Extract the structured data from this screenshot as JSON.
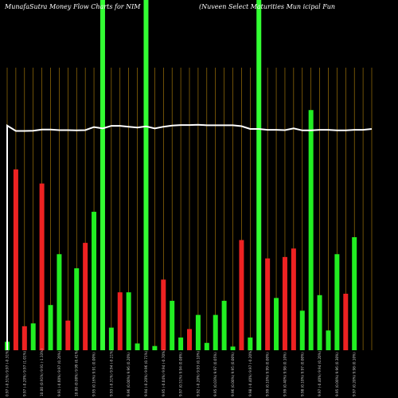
{
  "chart_data": {
    "type": "bar",
    "title_left": "MunafaSutra  Money Flow  Charts for NIM",
    "title_right": "(Nuveen  Select Maturities Mun                    icipal Fun",
    "categories": [
      "Mon 13 Jan 2025",
      "Fri 10 Jan 2025",
      "Thu 09 Jan 2025",
      "Wed 08 Jan 2025",
      "Tue 07 Jan 2025",
      "Mon 06 Jan 2025",
      "Fri 03 Jan 2025",
      "Thu 02 Jan 2025",
      "Tue 31 Dec 2024",
      "Mon 30 Dec 2024",
      "Fri 27 Dec 2024",
      "Thu 26 Dec 2024",
      "Tue 24 Dec 2024",
      "Mon 23 Dec 2024",
      "Fri 20 Dec 2024",
      "Thu 19 Dec 2024",
      "Wed 18 Dec 2024",
      "Tue 17 Dec 2024",
      "Mon 16 Dec 2024",
      "Fri 13 Dec 2024",
      "Thu 12 Dec 2024",
      "Wed 11 Dec 2024",
      "Tue 10 Dec 2024",
      "Mon 09 Dec 2024",
      "Fri 06 Dec 2024",
      "Thu 05 Dec 2024",
      "Wed 04 Dec 2024",
      "Tue 03 Dec 2024",
      "Mon 02 Dec 2024",
      "Fri 29 Nov 2024",
      "Wed 27 Nov 2024",
      "Tue 26 Nov 2024",
      "Mon 25 Nov 2024",
      "Fri 22 Nov 2024",
      "Thu 21 Nov 2024",
      "Wed 20 Nov 2024",
      "Tue 19 Nov 2024",
      "Mon 18 Nov 2024",
      "Fri 15 Nov 2024",
      "Thu 14 Nov 2024",
      "Wed 13 Nov 2024",
      "Tue 12 Nov 2024",
      "Mon 11 Nov 2024"
    ],
    "tick_labels": [
      "0.97 (-0.51%) 9.97 (-0.31%)",
      "9.97 (-0.20%) 9.97 (1.01%)",
      "10.00 (0.91%) 9.91 (-1.33%)",
      "9.91 (-0.60%) 9.97 (0.20%)",
      "10.00 (0.00%) 9.99 (0.41%)",
      "9.95 (0.16%) 9.91 (0.00%)",
      "9.93 (-0.31%) 9.94 (-0.21%)",
      "9.96 (0.00%) 9.96 (0.20%)",
      "9.94 (-0.20%) 9.96 (0.71%)",
      "9.95 (-0.04%) 9.94 (-0.70%)",
      "9.97 (0.51%) 9.94 (0.08%)",
      "9.92 (-0.20%) 9.93 (0.10%)",
      "9.95 (0.03%) 9.97 (0.05%)",
      "9.96 (0.00%) 9.95 (0.00%)",
      "9.98 (-0.40%) 9.97 (-0.20%)",
      "9.99 (0.10%) 9.99 (0.00%)",
      "9.99 (0.40%) 9.98 (0.10%)",
      "9.98 (0.10%) 9.97 (0.00%)",
      "9.97 (-0.40%) 9.94 (0.20%)",
      "9.95 (0.00%) 9.96 (0.30%)",
      "9.97 (0.20%) 9.98 (0.10%)"
    ],
    "direction": [
      "up",
      "down",
      "down",
      "up",
      "down",
      "up",
      "up",
      "down",
      "up",
      "down",
      "up",
      "up",
      "up",
      "down",
      "up",
      "up",
      "up",
      "up",
      "down",
      "up",
      "up",
      "down",
      "up",
      "up",
      "up",
      "up",
      "up",
      "down",
      "up",
      "down",
      "down",
      "up",
      "down",
      "down",
      "up",
      "up",
      "up",
      "up",
      "up",
      "down",
      "up",
      "up",
      "up"
    ],
    "values": [
      3,
      64,
      8.5,
      9.5,
      59,
      16,
      34,
      10.5,
      29,
      38,
      49,
      100,
      8,
      20.5,
      20.5,
      2.4,
      100,
      1.5,
      25,
      17.5,
      4.5,
      7.5,
      12.5,
      2.6,
      12.5,
      17.5,
      1.3,
      39,
      4.5,
      100,
      32.5,
      18.5,
      33,
      36,
      14,
      85,
      19.5,
      7,
      34,
      20,
      40,
      0,
      0
    ],
    "line": [
      79.5,
      77.6,
      77.6,
      77.7,
      78.1,
      78.1,
      77.9,
      77.9,
      77.8,
      77.9,
      79.0,
      78.5,
      79.4,
      79.4,
      79.1,
      78.8,
      79.2,
      78.5,
      79.1,
      79.5,
      79.7,
      79.7,
      79.8,
      79.6,
      79.6,
      79.6,
      79.6,
      79.3,
      78.3,
      78.3,
      78.0,
      78.0,
      77.9,
      78.5,
      77.8,
      77.8,
      78.0,
      78.0,
      77.8,
      77.8,
      78.0,
      78.0,
      78.3
    ],
    "ylim": [
      0,
      100
    ],
    "colors": {
      "background": "#000000",
      "up": "#22ee22",
      "down": "#ee2222",
      "full_up": "#33ff33",
      "grid": "#b8860b",
      "line": "#ffffff",
      "title": "#ffffff"
    }
  }
}
